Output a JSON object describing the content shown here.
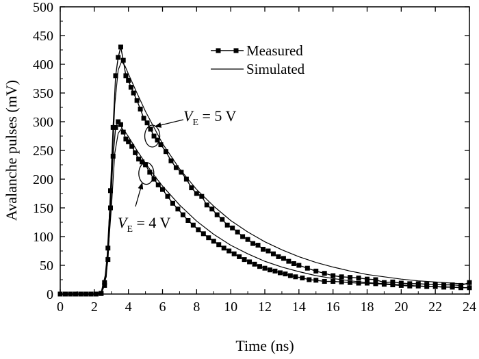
{
  "chart_data": {
    "type": "line",
    "xlabel": "Time (ns)",
    "ylabel": "Avalanche pulses (mV)",
    "xlim": [
      0,
      24
    ],
    "ylim": [
      0,
      500
    ],
    "xticks": [
      0,
      2,
      4,
      6,
      8,
      10,
      12,
      14,
      16,
      18,
      20,
      22,
      24
    ],
    "yticks": [
      0,
      50,
      100,
      150,
      200,
      250,
      300,
      350,
      400,
      450,
      500
    ],
    "grid": false,
    "legend": {
      "position": "top-right",
      "entries": [
        {
          "label": "Measured",
          "style": "line-square-marker"
        },
        {
          "label": "Simulated",
          "style": "line"
        }
      ]
    },
    "series": [
      {
        "group": "VE = 5 V",
        "kind": "measured",
        "x": [
          0,
          0.3,
          0.6,
          0.9,
          1.2,
          1.5,
          1.8,
          2.1,
          2.4,
          2.6,
          2.8,
          2.95,
          3.1,
          3.25,
          3.4,
          3.55,
          3.7,
          3.85,
          4.0,
          4.15,
          4.3,
          4.5,
          4.7,
          4.9,
          5.1,
          5.3,
          5.5,
          5.7,
          5.9,
          6.2,
          6.5,
          6.8,
          7.1,
          7.4,
          7.7,
          8.0,
          8.3,
          8.6,
          8.9,
          9.2,
          9.5,
          9.8,
          10.1,
          10.4,
          10.7,
          11.0,
          11.3,
          11.6,
          11.9,
          12.2,
          12.5,
          12.8,
          13.1,
          13.4,
          13.7,
          14.0,
          14.5,
          15.0,
          15.5,
          16.0,
          16.5,
          17.0,
          17.5,
          18.0,
          18.5,
          19.0,
          19.5,
          20.0,
          20.5,
          21.0,
          21.5,
          22.0,
          22.5,
          23.0,
          23.5,
          24.0
        ],
        "y": [
          0,
          0,
          0,
          0,
          0,
          0,
          0,
          0,
          1,
          20,
          80,
          180,
          290,
          380,
          412,
          430,
          407,
          380,
          372,
          360,
          350,
          337,
          322,
          306,
          298,
          287,
          275,
          268,
          260,
          248,
          232,
          220,
          212,
          200,
          185,
          175,
          170,
          155,
          148,
          138,
          130,
          120,
          115,
          108,
          100,
          95,
          88,
          85,
          78,
          75,
          70,
          65,
          62,
          57,
          53,
          50,
          45,
          40,
          36,
          32,
          30,
          29,
          28,
          26,
          25,
          20,
          21,
          19,
          18,
          18,
          17,
          17,
          16,
          16,
          15,
          20
        ]
      },
      {
        "group": "VE = 5 V",
        "kind": "simulated",
        "x": [
          0,
          1.0,
          2.0,
          2.4,
          2.7,
          3.0,
          3.2,
          3.4,
          3.6,
          3.8,
          4.0,
          4.5,
          5.0,
          5.5,
          6.0,
          7.0,
          8.0,
          9.0,
          10.0,
          11.0,
          12.0,
          13.0,
          14.0,
          15.0,
          16.0,
          17.0,
          18.0,
          19.0,
          20.0,
          21.0,
          22.0,
          23.0,
          24.0
        ],
        "y": [
          0,
          0,
          0,
          3,
          40,
          200,
          330,
          390,
          405,
          397,
          383,
          350,
          318,
          290,
          262,
          218,
          182,
          153,
          128,
          108,
          91,
          77,
          65,
          55,
          47,
          40,
          34,
          30,
          26,
          23,
          21,
          19,
          17
        ]
      },
      {
        "group": "VE = 4 V",
        "kind": "measured",
        "x": [
          0,
          0.3,
          0.6,
          0.9,
          1.2,
          1.5,
          1.8,
          2.1,
          2.4,
          2.6,
          2.8,
          2.95,
          3.1,
          3.25,
          3.4,
          3.55,
          3.7,
          3.85,
          4.0,
          4.2,
          4.4,
          4.6,
          4.8,
          5.0,
          5.25,
          5.5,
          5.75,
          6.0,
          6.3,
          6.6,
          6.9,
          7.2,
          7.5,
          7.8,
          8.1,
          8.4,
          8.7,
          9.0,
          9.3,
          9.6,
          9.9,
          10.2,
          10.5,
          10.8,
          11.1,
          11.4,
          11.7,
          12.0,
          12.3,
          12.6,
          12.9,
          13.2,
          13.5,
          13.8,
          14.2,
          14.6,
          15.0,
          15.5,
          16.0,
          16.5,
          17.0,
          17.5,
          18.0,
          18.5,
          19.0,
          19.5,
          20.0,
          20.5,
          21.0,
          21.5,
          22.0,
          22.5,
          23.0,
          23.5,
          24.0
        ],
        "y": [
          0,
          0,
          0,
          0,
          0,
          0,
          0,
          0,
          1,
          15,
          60,
          150,
          240,
          290,
          300,
          295,
          282,
          270,
          265,
          257,
          246,
          235,
          230,
          225,
          212,
          200,
          190,
          182,
          170,
          158,
          148,
          138,
          128,
          120,
          112,
          105,
          98,
          92,
          86,
          80,
          75,
          70,
          65,
          60,
          56,
          52,
          48,
          45,
          42,
          40,
          37,
          35,
          32,
          30,
          28,
          25,
          24,
          22,
          22,
          21,
          20,
          19,
          19,
          18,
          17,
          16,
          15,
          14,
          14,
          13,
          13,
          12,
          12,
          11,
          11
        ]
      },
      {
        "group": "VE = 4 V",
        "kind": "simulated",
        "x": [
          0,
          1.0,
          2.0,
          2.4,
          2.7,
          3.0,
          3.2,
          3.4,
          3.6,
          3.8,
          4.0,
          4.5,
          5.0,
          5.5,
          6.0,
          7.0,
          8.0,
          9.0,
          10.0,
          11.0,
          12.0,
          13.0,
          14.0,
          15.0,
          16.0,
          17.0,
          18.0,
          19.0,
          20.0,
          21.0,
          22.0,
          23.0,
          24.0
        ],
        "y": [
          0,
          0,
          0,
          2,
          30,
          150,
          245,
          280,
          288,
          283,
          274,
          250,
          228,
          207,
          188,
          155,
          127,
          104,
          85,
          70,
          57,
          47,
          39,
          32,
          27,
          23,
          20,
          18,
          16,
          14,
          13,
          12,
          11
        ]
      }
    ],
    "annotations": [
      {
        "label_main": "V",
        "label_sub": "E",
        "label_rest": " = 5 V",
        "group": "VE = 5 V",
        "target": [
          5.4,
          275
        ]
      },
      {
        "label_main": "V",
        "label_sub": "E",
        "label_rest": " = 4 V",
        "group": "VE = 4 V",
        "target": [
          5.05,
          210
        ]
      }
    ]
  }
}
